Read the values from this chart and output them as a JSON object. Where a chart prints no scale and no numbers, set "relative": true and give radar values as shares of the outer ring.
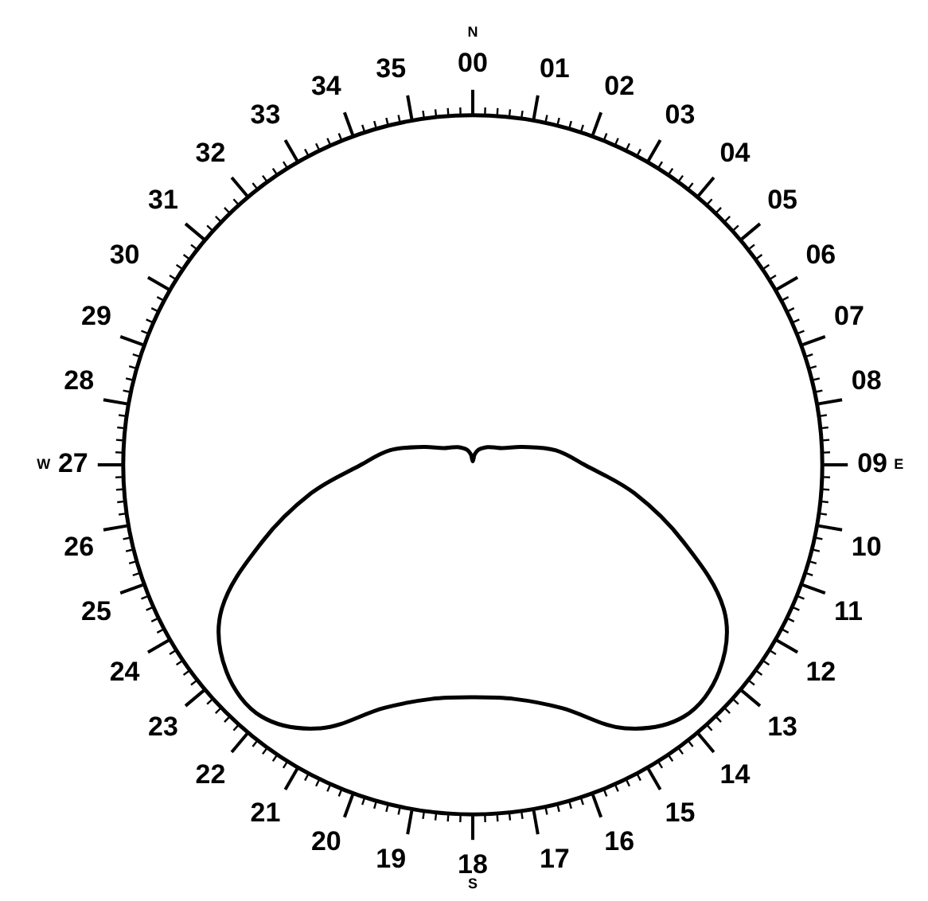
{
  "chart_data": {
    "type": "radar",
    "relative": true,
    "categories": [
      "00",
      "01",
      "02",
      "03",
      "04",
      "05",
      "06",
      "07",
      "08",
      "09",
      "10",
      "11",
      "12",
      "13",
      "14",
      "15",
      "16",
      "17",
      "18",
      "19",
      "20",
      "21",
      "22",
      "23",
      "24",
      "25",
      "26",
      "27",
      "28",
      "29",
      "30",
      "31",
      "32",
      "33",
      "34",
      "35"
    ],
    "series": [
      {
        "color": "#000000",
        "values": [
          0.01,
          0.03,
          0.045,
          0.055,
          0.066,
          0.078,
          0.096,
          0.15,
          0.24,
          0.32,
          0.47,
          0.64,
          0.83,
          0.92,
          0.94,
          0.87,
          0.74,
          0.68,
          0.665,
          0.68,
          0.74,
          0.87,
          0.94,
          0.92,
          0.83,
          0.64,
          0.47,
          0.32,
          0.24,
          0.15,
          0.096,
          0.078,
          0.066,
          0.055,
          0.045,
          0.03
        ]
      }
    ],
    "annotations": [
      "N",
      "E",
      "S",
      "W"
    ],
    "legend": false,
    "marker": "none",
    "grid": false
  }
}
